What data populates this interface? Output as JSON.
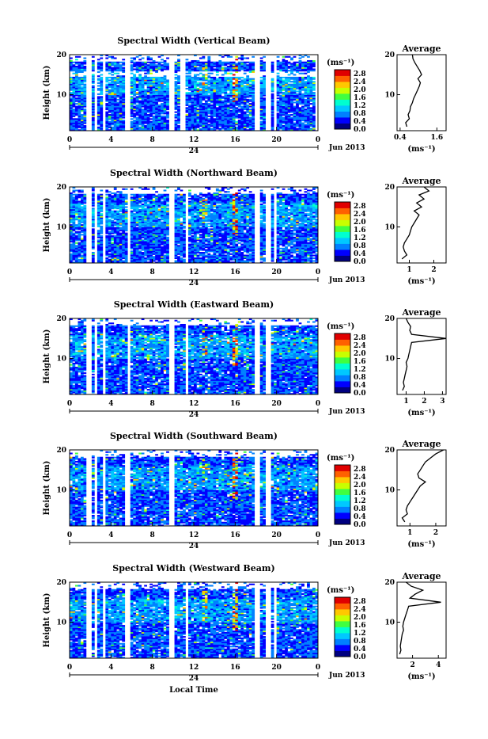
{
  "chart_data": [
    {
      "type": "heatmap",
      "title": "Spectral Width (Vertical Beam)",
      "ylabel": "Height (km)",
      "yticks": [
        "20",
        "10"
      ],
      "ylim": [
        1,
        20
      ],
      "xticks": [
        "0",
        "4",
        "8",
        "12",
        "16",
        "20",
        "0"
      ],
      "xlim": [
        0,
        24
      ],
      "date_marker": "24",
      "date_label": "Jun 2013",
      "colorbar": {
        "unit": "(ms⁻¹)",
        "ticks": [
          "2.8",
          "2.4",
          "2.0",
          "1.6",
          "1.2",
          "0.8",
          "0.4",
          "0.0"
        ],
        "range": [
          0,
          3.0
        ]
      },
      "average": {
        "title": "Average",
        "xticks": [
          "0.4",
          "1.6"
        ],
        "xlim": [
          0.3,
          1.9
        ],
        "xlabel": "(ms⁻¹)",
        "profile": [
          [
            0.62,
            2
          ],
          [
            0.58,
            3
          ],
          [
            0.7,
            4
          ],
          [
            0.66,
            5
          ],
          [
            0.72,
            6
          ],
          [
            0.74,
            7
          ],
          [
            0.8,
            8
          ],
          [
            0.84,
            9
          ],
          [
            0.9,
            10
          ],
          [
            0.96,
            11
          ],
          [
            1.02,
            12
          ],
          [
            1.06,
            13
          ],
          [
            0.98,
            14
          ],
          [
            1.1,
            15
          ],
          [
            1.04,
            16
          ],
          [
            0.96,
            17
          ],
          [
            0.88,
            18
          ],
          [
            0.82,
            19
          ],
          [
            0.8,
            20
          ]
        ]
      }
    },
    {
      "type": "heatmap",
      "title": "Spectral Width (Northward Beam)",
      "ylabel": "Height (km)",
      "yticks": [
        "20",
        "10"
      ],
      "ylim": [
        1,
        20
      ],
      "xticks": [
        "0",
        "4",
        "8",
        "12",
        "16",
        "20",
        "0"
      ],
      "xlim": [
        0,
        24
      ],
      "date_marker": "24",
      "date_label": "Jun 2013",
      "colorbar": {
        "unit": "(ms⁻¹)",
        "ticks": [
          "2.8",
          "2.4",
          "2.0",
          "1.6",
          "1.2",
          "0.8",
          "0.4",
          "0.0"
        ],
        "range": [
          0,
          3.0
        ]
      },
      "average": {
        "title": "Average",
        "xticks": [
          "1",
          "2"
        ],
        "xlim": [
          0.5,
          2.5
        ],
        "xlabel": "(ms⁻¹)",
        "profile": [
          [
            0.7,
            2
          ],
          [
            0.9,
            3
          ],
          [
            0.8,
            4
          ],
          [
            0.75,
            5
          ],
          [
            0.8,
            6
          ],
          [
            0.9,
            7
          ],
          [
            1.0,
            8
          ],
          [
            1.05,
            9
          ],
          [
            1.1,
            10
          ],
          [
            1.2,
            11
          ],
          [
            1.3,
            12
          ],
          [
            1.4,
            13
          ],
          [
            1.2,
            14
          ],
          [
            1.5,
            15
          ],
          [
            1.3,
            16
          ],
          [
            1.6,
            17
          ],
          [
            1.4,
            18
          ],
          [
            1.8,
            19
          ],
          [
            1.6,
            20
          ]
        ]
      }
    },
    {
      "type": "heatmap",
      "title": "Spectral Width (Eastward Beam)",
      "ylabel": "Height (km)",
      "yticks": [
        "20",
        "10"
      ],
      "ylim": [
        1,
        20
      ],
      "xticks": [
        "0",
        "4",
        "8",
        "12",
        "16",
        "20",
        "0"
      ],
      "xlim": [
        0,
        24
      ],
      "date_marker": "24",
      "date_label": "Jun 2013",
      "colorbar": {
        "unit": "(ms⁻¹)",
        "ticks": [
          "2.8",
          "2.4",
          "2.0",
          "1.6",
          "1.2",
          "0.8",
          "0.4",
          "0.0"
        ],
        "range": [
          0,
          3.0
        ]
      },
      "average": {
        "title": "Average",
        "xticks": [
          "1",
          "2",
          "3"
        ],
        "xlim": [
          0.5,
          3.2
        ],
        "xlabel": "(ms⁻¹)",
        "profile": [
          [
            0.8,
            2
          ],
          [
            0.9,
            3
          ],
          [
            0.85,
            4
          ],
          [
            0.9,
            5
          ],
          [
            0.95,
            6
          ],
          [
            1.0,
            7
          ],
          [
            1.05,
            8
          ],
          [
            1.0,
            9
          ],
          [
            1.1,
            10
          ],
          [
            1.15,
            11
          ],
          [
            1.2,
            12
          ],
          [
            1.25,
            13
          ],
          [
            1.3,
            14
          ],
          [
            3.2,
            15
          ],
          [
            1.3,
            16
          ],
          [
            1.2,
            17
          ],
          [
            1.25,
            18
          ],
          [
            1.1,
            19
          ],
          [
            1.0,
            20
          ]
        ]
      }
    },
    {
      "type": "heatmap",
      "title": "Spectral Width (Southward Beam)",
      "ylabel": "Height (km)",
      "yticks": [
        "20",
        "10"
      ],
      "ylim": [
        1,
        20
      ],
      "xticks": [
        "0",
        "4",
        "8",
        "12",
        "16",
        "20",
        "0"
      ],
      "xlim": [
        0,
        24
      ],
      "date_marker": "24",
      "date_label": "Jun 2013",
      "colorbar": {
        "unit": "(ms⁻¹)",
        "ticks": [
          "2.8",
          "2.4",
          "2.0",
          "1.6",
          "1.2",
          "0.8",
          "0.4",
          "0.0"
        ],
        "range": [
          0,
          3.0
        ]
      },
      "average": {
        "title": "Average",
        "xticks": [
          "1",
          "2"
        ],
        "xlim": [
          0.5,
          2.4
        ],
        "xlabel": "(ms⁻¹)",
        "profile": [
          [
            0.8,
            2
          ],
          [
            0.7,
            3
          ],
          [
            0.9,
            4
          ],
          [
            0.85,
            5
          ],
          [
            0.9,
            6
          ],
          [
            1.0,
            7
          ],
          [
            1.1,
            8
          ],
          [
            1.2,
            9
          ],
          [
            1.3,
            10
          ],
          [
            1.4,
            11
          ],
          [
            1.6,
            12
          ],
          [
            1.35,
            13
          ],
          [
            1.3,
            14
          ],
          [
            1.4,
            15
          ],
          [
            1.5,
            16
          ],
          [
            1.6,
            17
          ],
          [
            1.8,
            18
          ],
          [
            2.0,
            19
          ],
          [
            2.3,
            20
          ]
        ]
      }
    },
    {
      "type": "heatmap",
      "title": "Spectral Width (Westward Beam)",
      "ylabel": "Height (km)",
      "yticks": [
        "20",
        "10"
      ],
      "ylim": [
        1,
        20
      ],
      "xticks": [
        "0",
        "4",
        "8",
        "12",
        "16",
        "20",
        "0"
      ],
      "xlim": [
        0,
        24
      ],
      "date_marker": "24",
      "date_label": "Jun 2013",
      "xlabel": "Local Time",
      "colorbar": {
        "unit": "(ms⁻¹)",
        "ticks": [
          "2.8",
          "2.4",
          "2.0",
          "1.6",
          "1.2",
          "0.8",
          "0.4",
          "0.0"
        ],
        "range": [
          0,
          3.0
        ]
      },
      "average": {
        "title": "Average",
        "xticks": [
          "2",
          "4"
        ],
        "xlim": [
          0.8,
          4.6
        ],
        "xlabel": "(ms⁻¹)",
        "profile": [
          [
            1.0,
            2
          ],
          [
            1.1,
            3
          ],
          [
            1.05,
            4
          ],
          [
            1.1,
            5
          ],
          [
            1.15,
            6
          ],
          [
            1.2,
            7
          ],
          [
            1.3,
            8
          ],
          [
            1.25,
            9
          ],
          [
            1.3,
            10
          ],
          [
            1.4,
            11
          ],
          [
            1.5,
            12
          ],
          [
            1.6,
            13
          ],
          [
            1.7,
            14
          ],
          [
            4.2,
            15
          ],
          [
            1.8,
            16
          ],
          [
            2.2,
            17
          ],
          [
            2.8,
            18
          ],
          [
            1.9,
            19
          ],
          [
            1.5,
            20
          ]
        ]
      }
    }
  ],
  "colormap": [
    "#000080",
    "#0000ff",
    "#0080ff",
    "#00c8ff",
    "#00ffd0",
    "#40ff40",
    "#c8ff00",
    "#ffc800",
    "#ff6000",
    "#e00000",
    "#800000"
  ]
}
